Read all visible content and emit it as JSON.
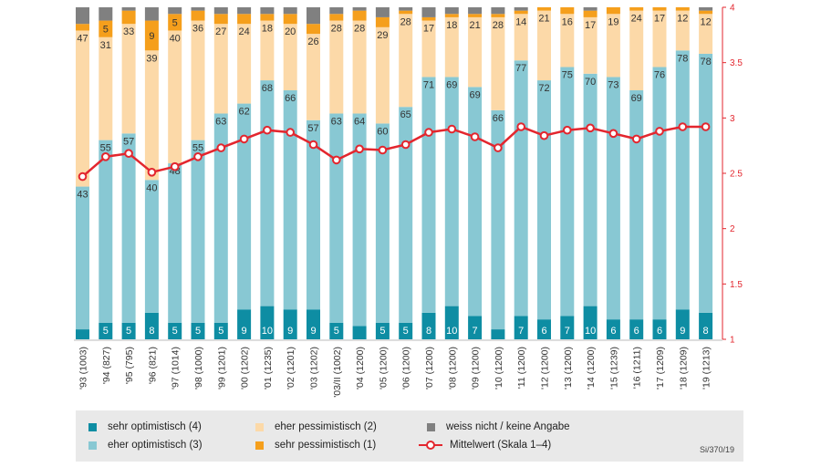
{
  "chart_data": {
    "type": "bar",
    "stacked": true,
    "categories": [
      "'93 (1003)",
      "'94 (827)",
      "'95 (795)",
      "'96 (821)",
      "'97 (1014)",
      "'98 (1000)",
      "'99 (1201)",
      "'00 (1202)",
      "'01 (1235)",
      "'02 (1201)",
      "'03 (1202)",
      "'03/II (1002)",
      "'04 (1200)",
      "'05 (1200)",
      "'06 (1200)",
      "'07 (1200)",
      "'08 (1200)",
      "'09 (1200)",
      "'10 (1200)",
      "'11 (1200)",
      "'12 (1200)",
      "'13 (1200)",
      "'14 (1200)",
      "'15 (1239)",
      "'16 (1211)",
      "'17 (1209)",
      "'18 (1209)",
      "'19 (1213)"
    ],
    "series": [
      {
        "name": "sehr optimistisch (4)",
        "color": "#0e8da3",
        "values": [
          3,
          5,
          5,
          8,
          5,
          5,
          5,
          9,
          10,
          9,
          9,
          5,
          4,
          5,
          5,
          8,
          10,
          7,
          3,
          7,
          6,
          7,
          10,
          6,
          6,
          6,
          9,
          8
        ],
        "labels": [
          "",
          "5",
          "5",
          "8",
          "5",
          "5",
          "5",
          "9",
          "10",
          "9",
          "9",
          "5",
          "",
          "5",
          "5",
          "8",
          "10",
          "7",
          "",
          "7",
          "6",
          "7",
          "10",
          "6",
          "6",
          "6",
          "9",
          "8"
        ]
      },
      {
        "name": "eher optimistisch (3)",
        "color": "#88c8d3",
        "values": [
          43,
          55,
          57,
          40,
          48,
          55,
          63,
          62,
          68,
          66,
          57,
          63,
          64,
          60,
          65,
          71,
          69,
          69,
          66,
          77,
          72,
          75,
          70,
          73,
          69,
          76,
          78,
          78
        ],
        "labels": [
          "43",
          "55",
          "57",
          "40",
          "48",
          "55",
          "63",
          "62",
          "68",
          "66",
          "57",
          "63",
          "64",
          "60",
          "65",
          "71",
          "69",
          "69",
          "66",
          "77",
          "72",
          "75",
          "70",
          "73",
          "69",
          "76",
          "78",
          "78"
        ]
      },
      {
        "name": "eher pessimistisch (2)",
        "color": "#fcd9a8",
        "values": [
          47,
          31,
          33,
          39,
          40,
          36,
          27,
          24,
          18,
          20,
          26,
          28,
          28,
          29,
          28,
          17,
          18,
          21,
          28,
          14,
          21,
          16,
          17,
          19,
          24,
          17,
          12,
          12
        ],
        "labels": [
          "47",
          "31",
          "33",
          "39",
          "40",
          "36",
          "27",
          "24",
          "18",
          "20",
          "26",
          "28",
          "28",
          "29",
          "28",
          "17",
          "18",
          "21",
          "28",
          "14",
          "21",
          "16",
          "17",
          "19",
          "24",
          "17",
          "12",
          "12"
        ]
      },
      {
        "name": "sehr pessimistisch (1)",
        "color": "#f59f1c",
        "values": [
          2,
          5,
          4,
          9,
          5,
          3,
          3,
          3,
          2,
          3,
          3,
          2,
          3,
          3,
          1,
          1,
          1,
          1,
          1,
          1,
          1,
          2,
          2,
          2,
          1,
          1,
          1,
          1
        ],
        "labels": [
          "",
          "5",
          "",
          "9",
          "5",
          "",
          "",
          "",
          "",
          "",
          "",
          "",
          "",
          "",
          "",
          "",
          "",
          "",
          "",
          "",
          "",
          "",
          "",
          "",
          "",
          "",
          "",
          ""
        ]
      },
      {
        "name": "weiss nicht / keine Angabe",
        "color": "#808080",
        "values": [
          5,
          4,
          1,
          4,
          2,
          1,
          2,
          2,
          2,
          2,
          5,
          2,
          1,
          3,
          1,
          3,
          2,
          2,
          2,
          1,
          0,
          0,
          1,
          0,
          0,
          0,
          0,
          1
        ],
        "labels": []
      }
    ],
    "mean_series": {
      "name": "Mittelwert (Skala 1–4)",
      "color": "#e3262e",
      "values": [
        2.47,
        2.65,
        2.68,
        2.51,
        2.56,
        2.65,
        2.73,
        2.81,
        2.89,
        2.87,
        2.76,
        2.62,
        2.72,
        2.71,
        2.76,
        2.87,
        2.9,
        2.83,
        2.73,
        2.92,
        2.84,
        2.89,
        2.91,
        2.86,
        2.81,
        2.88,
        2.92,
        2.92
      ]
    },
    "ylim_right": [
      1,
      4
    ],
    "right_ticks": [
      "1",
      "1.5",
      "2",
      "2.5",
      "3",
      "3.5",
      "4"
    ],
    "legend_position": "bottom"
  },
  "legend": {
    "items": [
      {
        "label": "sehr optimistisch (4)",
        "color": "#0e8da3"
      },
      {
        "label": "eher optimistisch (3)",
        "color": "#88c8d3"
      },
      {
        "label": "eher pessimistisch (2)",
        "color": "#fcd9a8"
      },
      {
        "label": "sehr pessimistisch (1)",
        "color": "#f59f1c"
      },
      {
        "label": "weiss nicht / keine Angabe",
        "color": "#808080"
      },
      {
        "label": "Mittelwert (Skala 1–4)",
        "color": "#e3262e"
      }
    ],
    "source": "Si/370/19"
  }
}
